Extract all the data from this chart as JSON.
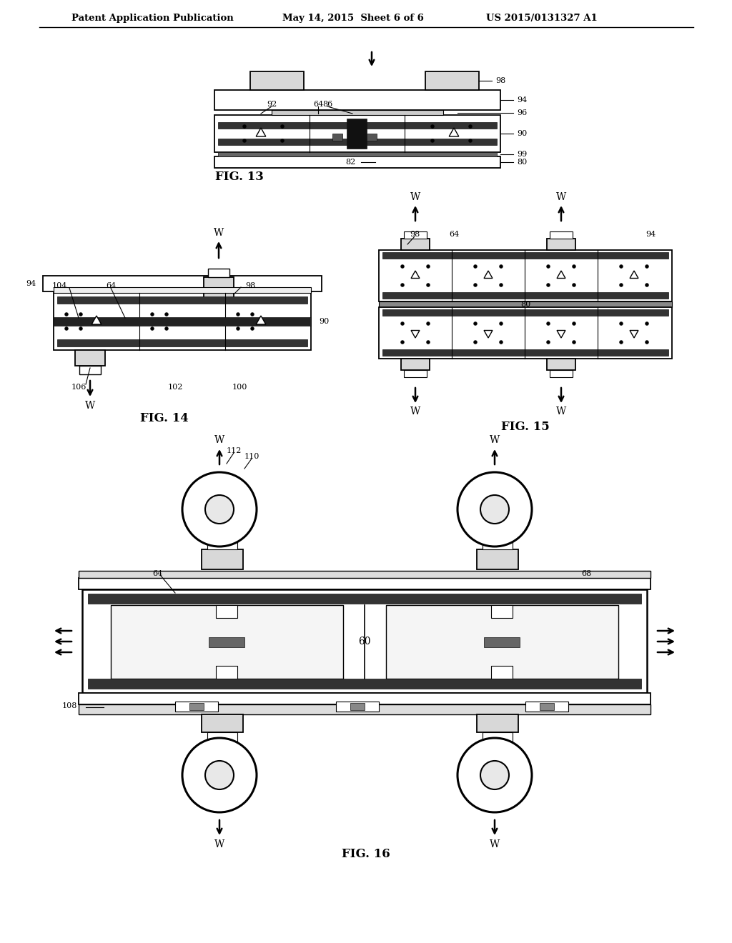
{
  "bg_color": "#ffffff",
  "header_text1": "Patent Application Publication",
  "header_text2": "May 14, 2015  Sheet 6 of 6",
  "header_text3": "US 2015/0131327 A1"
}
